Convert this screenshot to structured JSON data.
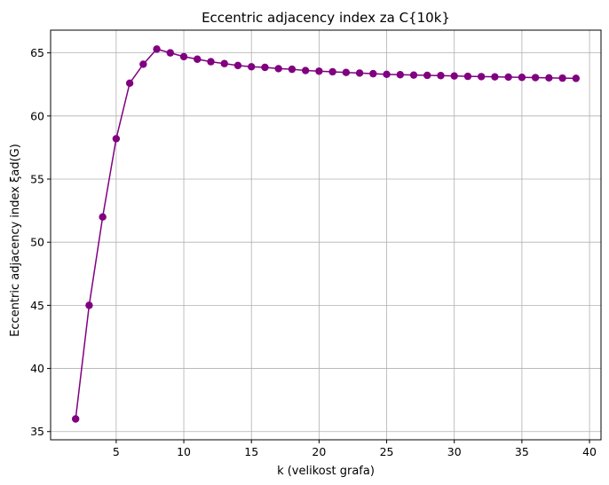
{
  "chart_data": {
    "type": "line",
    "title": "Eccentric adjacency index za C{10k}",
    "xlabel": "k (velikost grafa)",
    "ylabel": "Eccentric adjacency index ξad(G)",
    "xlim": [
      0.15,
      40.85
    ],
    "ylim": [
      34.35,
      66.8
    ],
    "xticks": [
      5,
      10,
      15,
      20,
      25,
      30,
      35,
      40
    ],
    "yticks": [
      35,
      40,
      45,
      50,
      55,
      60,
      65
    ],
    "grid": true,
    "series": [
      {
        "color": "#800080",
        "marker": "circle",
        "x": [
          2,
          3,
          4,
          5,
          6,
          7,
          8,
          9,
          10,
          11,
          12,
          13,
          14,
          15,
          16,
          17,
          18,
          19,
          20,
          21,
          22,
          23,
          24,
          25,
          26,
          27,
          28,
          29,
          30,
          31,
          32,
          33,
          34,
          35,
          36,
          37,
          38,
          39
        ],
        "values": [
          36.0,
          45.0,
          52.0,
          58.2,
          62.6,
          64.1,
          65.3,
          65.0,
          64.7,
          64.5,
          64.3,
          64.15,
          64.0,
          63.9,
          63.85,
          63.75,
          63.7,
          63.6,
          63.55,
          63.5,
          63.45,
          63.4,
          63.35,
          63.3,
          63.27,
          63.24,
          63.22,
          63.2,
          63.17,
          63.14,
          63.12,
          63.1,
          63.08,
          63.06,
          63.04,
          63.02,
          63.0,
          62.98
        ]
      }
    ]
  }
}
